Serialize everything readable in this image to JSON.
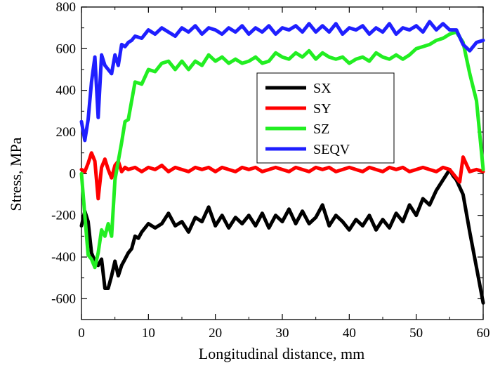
{
  "chart_data": {
    "type": "line",
    "xlabel": "Longitudinal distance, mm",
    "ylabel": "Stress, MPa",
    "xlim": [
      0,
      60
    ],
    "ylim": [
      -700,
      800
    ],
    "xticks": [
      0,
      10,
      20,
      30,
      40,
      50,
      60
    ],
    "yticks": [
      -600,
      -400,
      -200,
      0,
      200,
      400,
      600,
      800
    ],
    "grid": false,
    "legend_position": "upper-center",
    "series": [
      {
        "name": "SX",
        "color": "#000000",
        "x": [
          0,
          0.5,
          1,
          1.5,
          2,
          2.5,
          3,
          3.5,
          4,
          4.5,
          5,
          5.5,
          6,
          6.5,
          7,
          7.5,
          8,
          8.5,
          9,
          10,
          11,
          12,
          13,
          14,
          15,
          16,
          17,
          18,
          19,
          20,
          21,
          22,
          23,
          24,
          25,
          26,
          27,
          28,
          29,
          30,
          31,
          32,
          33,
          34,
          35,
          36,
          37,
          38,
          39,
          40,
          41,
          42,
          43,
          44,
          45,
          46,
          47,
          48,
          49,
          50,
          51,
          52,
          53,
          54,
          55,
          55.5,
          56,
          57,
          58,
          59,
          60
        ],
        "values": [
          -250,
          -180,
          -230,
          -380,
          -420,
          -440,
          -410,
          -550,
          -550,
          -490,
          -420,
          -490,
          -440,
          -410,
          -380,
          -360,
          -300,
          -310,
          -280,
          -240,
          -260,
          -240,
          -190,
          -250,
          -230,
          -280,
          -210,
          -230,
          -160,
          -250,
          -200,
          -260,
          -210,
          -240,
          -200,
          -250,
          -190,
          -260,
          -200,
          -230,
          -170,
          -240,
          -180,
          -240,
          -210,
          -150,
          -250,
          -200,
          -230,
          -270,
          -220,
          -250,
          -200,
          -270,
          -220,
          -260,
          -190,
          -230,
          -150,
          -200,
          -120,
          -150,
          -80,
          -30,
          20,
          -10,
          -30,
          -100,
          -280,
          -450,
          -620
        ]
      },
      {
        "name": "SY",
        "color": "#ff0000",
        "x": [
          0,
          0.5,
          1,
          1.5,
          2,
          2.5,
          3,
          3.5,
          4,
          4.5,
          5,
          5.5,
          6,
          6.5,
          7,
          8,
          9,
          10,
          11,
          12,
          13,
          14,
          15,
          16,
          17,
          18,
          19,
          20,
          21,
          22,
          23,
          24,
          25,
          26,
          27,
          28,
          29,
          30,
          31,
          32,
          33,
          34,
          35,
          36,
          37,
          38,
          39,
          40,
          41,
          42,
          43,
          44,
          45,
          46,
          47,
          48,
          49,
          50,
          51,
          52,
          53,
          54,
          55,
          56,
          56.5,
          57,
          58,
          59,
          60
        ],
        "values": [
          20,
          10,
          50,
          100,
          60,
          -120,
          30,
          70,
          20,
          -20,
          40,
          60,
          10,
          30,
          20,
          30,
          10,
          30,
          20,
          40,
          10,
          30,
          20,
          10,
          30,
          20,
          30,
          10,
          30,
          20,
          10,
          30,
          20,
          30,
          10,
          20,
          30,
          20,
          10,
          30,
          20,
          10,
          30,
          20,
          30,
          10,
          20,
          30,
          20,
          10,
          30,
          20,
          10,
          30,
          20,
          30,
          10,
          20,
          30,
          20,
          10,
          30,
          20,
          -20,
          -40,
          80,
          10,
          20,
          10
        ]
      },
      {
        "name": "SZ",
        "color": "#22ee22",
        "x": [
          0,
          0.5,
          1,
          1.5,
          2,
          2.5,
          3,
          3.5,
          4,
          4.5,
          5,
          5.5,
          6,
          6.5,
          7,
          7.5,
          8,
          9,
          10,
          11,
          12,
          13,
          14,
          15,
          16,
          17,
          18,
          19,
          20,
          21,
          22,
          23,
          24,
          25,
          26,
          27,
          28,
          29,
          30,
          31,
          32,
          33,
          34,
          35,
          36,
          37,
          38,
          39,
          40,
          41,
          42,
          43,
          44,
          45,
          46,
          47,
          48,
          49,
          50,
          51,
          52,
          53,
          54,
          55,
          56,
          57,
          58,
          59,
          60
        ],
        "values": [
          0,
          -200,
          -390,
          -410,
          -450,
          -380,
          -270,
          -300,
          -240,
          -300,
          -30,
          60,
          150,
          250,
          260,
          350,
          440,
          430,
          500,
          490,
          530,
          540,
          500,
          540,
          500,
          540,
          520,
          570,
          540,
          560,
          530,
          550,
          530,
          540,
          560,
          530,
          540,
          580,
          560,
          550,
          580,
          560,
          590,
          550,
          580,
          560,
          550,
          560,
          530,
          550,
          560,
          540,
          580,
          560,
          550,
          570,
          550,
          570,
          600,
          610,
          620,
          640,
          650,
          670,
          680,
          630,
          480,
          350,
          20
        ]
      },
      {
        "name": "SEQV",
        "color": "#1f1fff",
        "x": [
          0,
          0.5,
          1,
          1.5,
          2,
          2.5,
          3,
          3.5,
          4,
          4.5,
          5,
          5.5,
          6,
          6.5,
          7,
          7.5,
          8,
          9,
          10,
          11,
          12,
          13,
          14,
          15,
          16,
          17,
          18,
          19,
          20,
          21,
          22,
          23,
          24,
          25,
          26,
          27,
          28,
          29,
          30,
          31,
          32,
          33,
          34,
          35,
          36,
          37,
          38,
          39,
          40,
          41,
          42,
          43,
          44,
          45,
          46,
          47,
          48,
          49,
          50,
          51,
          52,
          53,
          54,
          55,
          56,
          57,
          58,
          59,
          60
        ],
        "values": [
          250,
          160,
          260,
          440,
          560,
          270,
          570,
          520,
          500,
          480,
          570,
          520,
          620,
          610,
          630,
          640,
          660,
          650,
          690,
          670,
          700,
          680,
          660,
          700,
          680,
          710,
          670,
          700,
          690,
          670,
          700,
          680,
          710,
          670,
          700,
          680,
          710,
          670,
          700,
          690,
          710,
          680,
          720,
          680,
          710,
          680,
          720,
          670,
          700,
          690,
          710,
          670,
          700,
          680,
          720,
          670,
          700,
          690,
          710,
          680,
          730,
          690,
          720,
          690,
          690,
          620,
          590,
          630,
          640
        ]
      }
    ]
  }
}
